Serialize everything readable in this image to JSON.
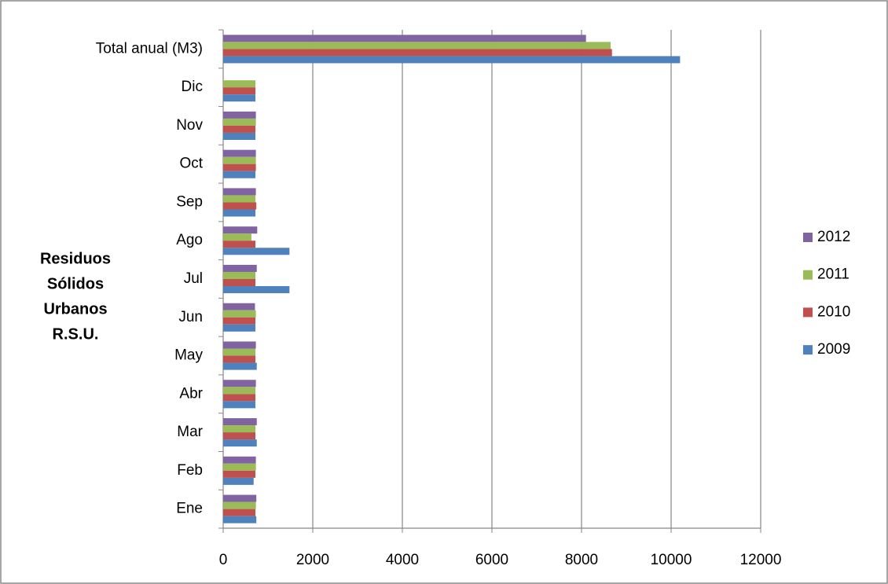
{
  "chart_data": {
    "type": "barh",
    "y_label_lines": [
      "Residuos",
      "Sólidos",
      "Urbanos",
      "R.S.U."
    ],
    "categories": [
      "Ene",
      "Feb",
      "Mar",
      "Abr",
      "May",
      "Jun",
      "Jul",
      "Ago",
      "Sep",
      "Oct",
      "Nov",
      "Dic",
      "Total anual (M3)"
    ],
    "series": [
      {
        "name": "2012",
        "color": "#8064a2",
        "values": [
          740,
          730,
          750,
          730,
          730,
          710,
          750,
          760,
          730,
          730,
          730,
          null,
          8100
        ]
      },
      {
        "name": "2011",
        "color": "#9bbb59",
        "values": [
          730,
          730,
          720,
          720,
          720,
          730,
          720,
          630,
          720,
          730,
          730,
          720,
          8650
        ]
      },
      {
        "name": "2010",
        "color": "#c0504d",
        "values": [
          720,
          720,
          720,
          720,
          720,
          720,
          720,
          720,
          740,
          730,
          720,
          720,
          8680
        ]
      },
      {
        "name": "2009",
        "color": "#4f81bd",
        "values": [
          740,
          680,
          750,
          720,
          750,
          720,
          1480,
          1480,
          720,
          720,
          720,
          720,
          10200
        ]
      }
    ],
    "xlim": [
      0,
      12000
    ],
    "xticks": [
      0,
      2000,
      4000,
      6000,
      8000,
      10000,
      12000
    ],
    "grid": true,
    "legend": "right"
  }
}
